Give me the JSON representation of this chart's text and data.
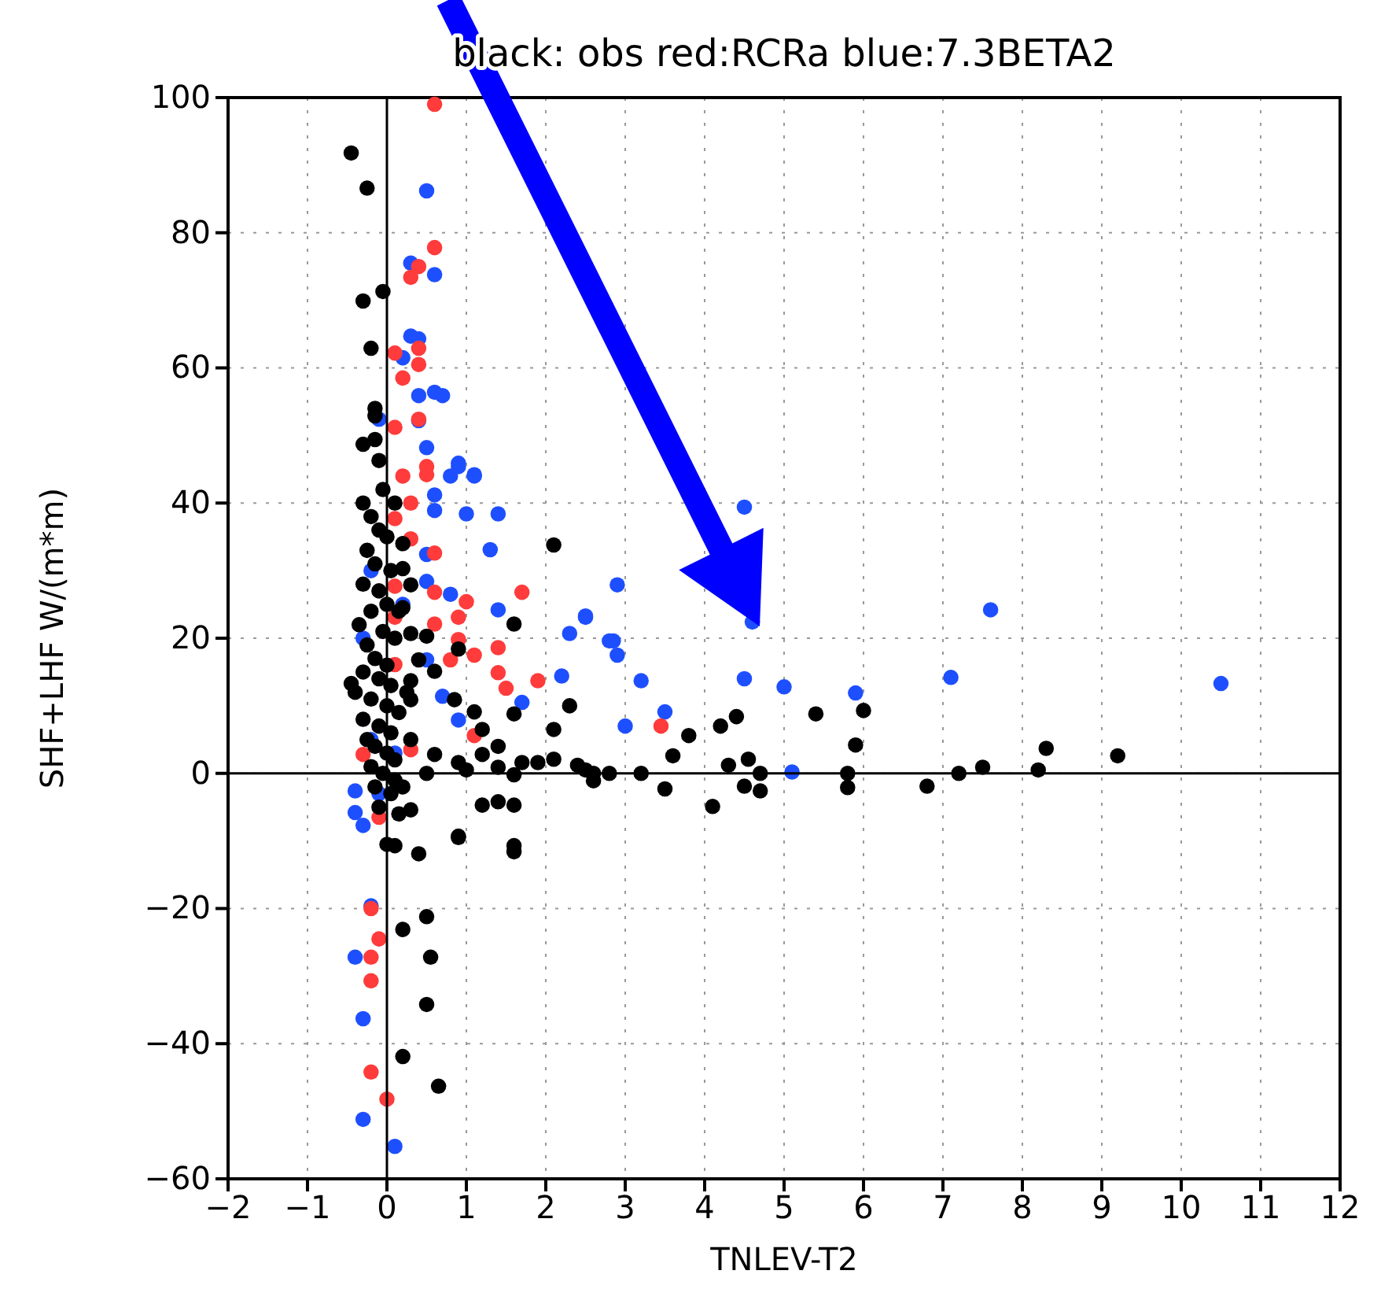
{
  "chart_data": {
    "type": "scatter",
    "title": "black: obs red:RCRa blue:7.3BETA2",
    "xlabel": "TNLEV-T2",
    "ylabel": "SHF+LHF W/(m*m)",
    "xlim": [
      -2,
      12
    ],
    "ylim": [
      -60,
      100
    ],
    "xticks": [
      -2,
      -1,
      0,
      1,
      2,
      3,
      4,
      5,
      6,
      7,
      8,
      9,
      10,
      11,
      12
    ],
    "yticks": [
      -60,
      -40,
      -20,
      0,
      20,
      40,
      60,
      80,
      100
    ],
    "grid": true,
    "marker": "circle",
    "series": [
      {
        "color": "#1e4fff",
        "x": [
          4.5,
          2.9,
          2.5,
          4.6,
          7.6,
          2.85,
          2.9,
          3.2,
          4.5,
          5,
          5.9,
          7.1,
          10.5,
          3.5,
          3,
          5.1,
          0.5,
          0.3,
          0.6,
          0.3,
          0.4,
          0.2,
          0.4,
          0.6,
          0.7,
          -0.1,
          0.4,
          0.5,
          0.9,
          1.1,
          0.9,
          0.8,
          1.1,
          1,
          1.4,
          1.3,
          0.6,
          0.6,
          0.5,
          0.5,
          0.8,
          1.4,
          2.5,
          2.3,
          1.7,
          2.2,
          2.8,
          0.7,
          0.9,
          0.5,
          -0.4,
          -0.4,
          -0.3,
          -0.2,
          -0.4,
          -0.3,
          -0.3,
          0.1,
          -0.2,
          -0.3,
          0.1,
          -0.1,
          0.2,
          -0.2
        ],
        "values": [
          39.4,
          27.9,
          23.1,
          22.4,
          24.2,
          19.6,
          17.5,
          13.7,
          14,
          12.8,
          11.9,
          14.2,
          13.3,
          9.1,
          7,
          0.2,
          86.2,
          75.5,
          73.8,
          64.7,
          64.3,
          61.5,
          55.9,
          56.4,
          55.9,
          52.4,
          52.2,
          48.2,
          45.9,
          44.2,
          45.4,
          44,
          44,
          38.4,
          38.4,
          33.1,
          38.9,
          41.2,
          32.4,
          28.4,
          26.5,
          24.2,
          23.3,
          20.7,
          10.5,
          14.4,
          19.6,
          11.4,
          7.9,
          16.8,
          -2.6,
          -5.8,
          -7.7,
          -19.6,
          -27.2,
          -36.3,
          -51.2,
          -55.2,
          30,
          20,
          3,
          -3,
          25,
          5
        ]
      },
      {
        "color": "#ff3b3b",
        "x": [
          3.45,
          0.6,
          0.6,
          0.4,
          0.3,
          0.4,
          0.1,
          0.4,
          0.2,
          0.4,
          0.1,
          0.5,
          0.2,
          0.5,
          0.3,
          0.6,
          0.6,
          1,
          0.9,
          0.6,
          1.7,
          1.4,
          1.1,
          1.4,
          1.9,
          1.5,
          0.9,
          0.8,
          1.1,
          -0.3,
          -0.1,
          0.1,
          0.1,
          0.1,
          0.3,
          0.1,
          -0.2,
          -0.1,
          -0.2,
          -0.2,
          -0.2,
          0,
          0.3
        ],
        "values": [
          7,
          99,
          77.8,
          75,
          73.4,
          62.9,
          62.2,
          60.5,
          58.5,
          52.4,
          51.2,
          45.4,
          44,
          44.2,
          34.7,
          32.6,
          26.8,
          25.4,
          23.1,
          22.1,
          26.8,
          18.6,
          17.5,
          14.9,
          13.7,
          12.6,
          19.8,
          16.8,
          5.6,
          2.8,
          -6.5,
          37.7,
          27.7,
          16.1,
          3.5,
          23.1,
          -20,
          -24.5,
          -27.2,
          -30.7,
          -44.2,
          -48.2,
          40
        ]
      },
      {
        "color": "#000000",
        "x": [
          2.5,
          2.6,
          2.8,
          3.2,
          3.5,
          3.6,
          3.8,
          4.1,
          4.2,
          4.4,
          4.3,
          4.55,
          4.5,
          4.7,
          4.7,
          5.4,
          5.9,
          6,
          5.8,
          5.8,
          6.8,
          7.2,
          7.5,
          8.2,
          8.3,
          9.2,
          2.1,
          1.6,
          2.3,
          2.1,
          1.6,
          1.2,
          0.85,
          0.6,
          0.9,
          1.1,
          1.4,
          0.9,
          0.5,
          0.6,
          1,
          1.2,
          1.4,
          1.6,
          1.7,
          1.9,
          2.1,
          2.4,
          2.6,
          0.3,
          0.9,
          1.2,
          1.4,
          1.6,
          1.6,
          0.5,
          0.3,
          0.4,
          0.3,
          0.3,
          0.2,
          0.3,
          0.2,
          0.9,
          1.6,
          0,
          0.1,
          0.4,
          0.5,
          0.2,
          0.55,
          0.5,
          0.2,
          0.65,
          -0.45,
          -0.25,
          -0.3,
          -0.05,
          -0.2,
          -0.15,
          -0.15,
          -0.15,
          -0.3,
          -0.1,
          -0.3,
          -0.2,
          -0.1,
          0,
          -0.25,
          -0.15,
          0.05,
          -0.3,
          -0.1,
          0,
          -0.2,
          -0.35,
          -0.05,
          0.1,
          -0.25,
          -0.15,
          0,
          -0.3,
          -0.1,
          0.05,
          -0.4,
          -0.2,
          0,
          0.15,
          -0.3,
          -0.1,
          0.05,
          -0.25,
          -0.15,
          0,
          0.1,
          -0.2,
          -0.05,
          0.1,
          -0.15,
          0.05,
          -0.1,
          0.15,
          -0.45,
          0.2,
          0.3,
          0.25,
          0.15,
          0.2,
          -0.05,
          0.1
        ],
        "values": [
          0.5,
          -1.1,
          0,
          0,
          -2.3,
          2.6,
          5.6,
          -4.9,
          7,
          8.4,
          1.2,
          2.1,
          -1.9,
          0,
          -2.6,
          8.8,
          4.2,
          9.3,
          0,
          -2.1,
          -1.9,
          0,
          0.9,
          0.5,
          3.7,
          2.6,
          33.8,
          22.1,
          10,
          6.5,
          8.8,
          6.5,
          10.9,
          15.1,
          18.4,
          9.1,
          4,
          1.6,
          0,
          2.8,
          0.5,
          2.8,
          0.9,
          -0.2,
          1.6,
          1.6,
          2.1,
          1.2,
          0,
          -5.4,
          -9.3,
          -4.7,
          -4.2,
          -4.7,
          -10.7,
          20.3,
          20.7,
          16.8,
          13.7,
          10.9,
          30.3,
          27.9,
          24.5,
          -9.5,
          -11.6,
          -10.5,
          -10.7,
          -11.9,
          -21.2,
          -23.1,
          -27.2,
          -34.2,
          -41.9,
          -46.3,
          91.8,
          86.6,
          69.9,
          71.3,
          62.9,
          54,
          52.9,
          49.4,
          48.7,
          46.3,
          40,
          38,
          36,
          35,
          33,
          31,
          30,
          28,
          27,
          25,
          24,
          22,
          21,
          20,
          19,
          17,
          16,
          15,
          14,
          13,
          12,
          11,
          10,
          9,
          8,
          7,
          6,
          5,
          4,
          3,
          2,
          1,
          0,
          -1,
          -2,
          -3,
          -5,
          -6,
          13.3,
          -2,
          5,
          12,
          24,
          34,
          42,
          40
        ]
      }
    ]
  }
}
